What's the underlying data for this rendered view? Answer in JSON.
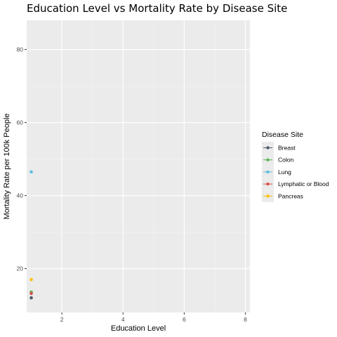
{
  "chart_data": {
    "type": "scatter",
    "title": "Education Level vs Mortality Rate by Disease Site",
    "xlabel": "Education Level",
    "ylabel": "Mortality Rate per 100k People",
    "xlim": [
      0.85,
      8.15
    ],
    "ylim": [
      8.0,
      88.0
    ],
    "xticks": [
      2,
      4,
      6,
      8
    ],
    "yticks": [
      20,
      40,
      60,
      80
    ],
    "grid": true,
    "legend": {
      "title": "Disease Site",
      "position": "right"
    },
    "series": [
      {
        "name": "Breast",
        "color": "#4b5a6a",
        "points": [
          {
            "x": 1,
            "y": 12.0
          }
        ]
      },
      {
        "name": "Colon",
        "color": "#5cb85c",
        "points": [
          {
            "x": 1,
            "y": 13.6
          }
        ]
      },
      {
        "name": "Lung",
        "color": "#5bc0de",
        "points": [
          {
            "x": 1,
            "y": 46.5
          }
        ]
      },
      {
        "name": "Lymphatic or Blood",
        "color": "#d9534f",
        "points": [
          {
            "x": 1,
            "y": 13.2
          }
        ]
      },
      {
        "name": "Pancreas",
        "color": "#ffc107",
        "points": [
          {
            "x": 1,
            "y": 17.0
          }
        ]
      }
    ]
  }
}
